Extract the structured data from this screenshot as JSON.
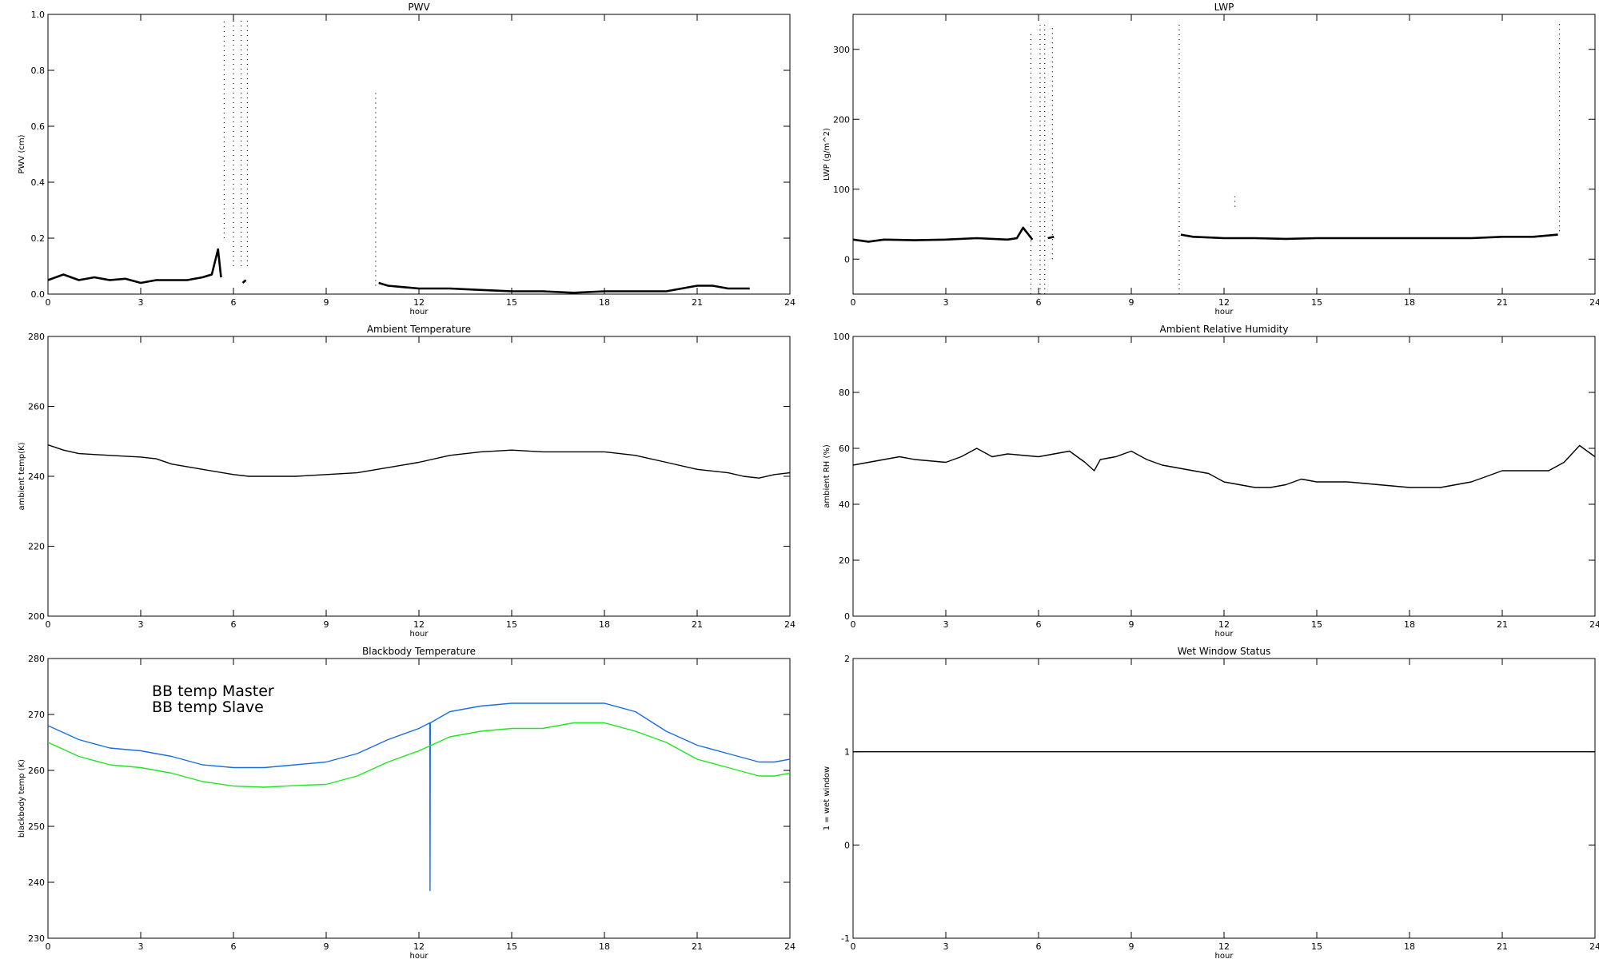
{
  "chart_data": [
    {
      "type": "scatter",
      "title": "PWV",
      "xlabel": "hour",
      "ylabel": "PWV (cm)",
      "xlim": [
        0,
        24
      ],
      "ylim": [
        0,
        1
      ],
      "xticks": [
        0,
        3,
        6,
        9,
        12,
        15,
        18,
        21,
        24
      ],
      "xtick_labels": [
        "0",
        "3",
        "6",
        "9",
        "12",
        "15",
        "18",
        "21",
        "24"
      ],
      "yticks": [
        0,
        0.2,
        0.4,
        0.6,
        0.8,
        1.0
      ],
      "ytick_labels": [
        "0.0",
        "0.2",
        "0.4",
        "0.6",
        "0.8",
        "1.0"
      ],
      "grid": false,
      "color": "#000000",
      "series": [
        {
          "x": [
            0,
            0.5,
            1,
            1.5,
            2,
            2.5,
            3,
            3.5,
            4,
            4.5,
            5,
            5.3,
            5.5,
            5.6
          ],
          "y": [
            0.05,
            0.07,
            0.05,
            0.06,
            0.05,
            0.055,
            0.04,
            0.05,
            0.05,
            0.05,
            0.06,
            0.07,
            0.16,
            0.06
          ]
        },
        {
          "x": [
            6.3,
            6.4
          ],
          "y": [
            0.04,
            0.05
          ]
        },
        {
          "x": [
            10.7,
            11,
            11.5,
            12,
            12.5,
            13,
            14,
            15,
            16,
            17,
            18,
            19,
            20,
            20.5,
            21,
            21.5,
            22,
            22.7
          ],
          "y": [
            0.04,
            0.03,
            0.025,
            0.02,
            0.02,
            0.02,
            0.015,
            0.01,
            0.01,
            0.005,
            0.01,
            0.01,
            0.01,
            0.02,
            0.03,
            0.03,
            0.02,
            0.02
          ]
        }
      ],
      "spikes": [
        {
          "x": 5.7,
          "y": [
            0.2,
            0.98
          ]
        },
        {
          "x": 6.0,
          "y": [
            0.1,
            0.98
          ]
        },
        {
          "x": 6.25,
          "y": [
            0.1,
            0.98
          ]
        },
        {
          "x": 6.45,
          "y": [
            0.1,
            0.98
          ]
        },
        {
          "x": 10.6,
          "y": [
            0.03,
            0.73
          ]
        }
      ]
    },
    {
      "type": "scatter",
      "title": "LWP",
      "xlabel": "hour",
      "ylabel": "LWP (g/m^2)",
      "xlim": [
        0,
        24
      ],
      "ylim": [
        -50,
        350
      ],
      "xticks": [
        0,
        3,
        6,
        9,
        12,
        15,
        18,
        21,
        24
      ],
      "xtick_labels": [
        "0",
        "3",
        "6",
        "9",
        "12",
        "15",
        "18",
        "21",
        "24"
      ],
      "yticks": [
        0,
        100,
        200,
        300
      ],
      "ytick_labels": [
        "0",
        "100",
        "200",
        "300"
      ],
      "grid": false,
      "color": "#000000",
      "series": [
        {
          "x": [
            0,
            0.5,
            1,
            2,
            3,
            4,
            5,
            5.3,
            5.5,
            5.8
          ],
          "y": [
            28,
            25,
            28,
            27,
            28,
            30,
            28,
            30,
            45,
            28
          ]
        },
        {
          "x": [
            6.3,
            6.5
          ],
          "y": [
            30,
            32
          ]
        },
        {
          "x": [
            10.6,
            11,
            12,
            13,
            14,
            15,
            16,
            17,
            18,
            19,
            20,
            21,
            22,
            22.8
          ],
          "y": [
            35,
            32,
            30,
            30,
            29,
            30,
            30,
            30,
            30,
            30,
            30,
            32,
            32,
            35
          ]
        }
      ],
      "spikes": [
        {
          "x": 5.75,
          "y": [
            -50,
            325
          ]
        },
        {
          "x": 6.05,
          "y": [
            -50,
            335
          ]
        },
        {
          "x": 6.2,
          "y": [
            -50,
            335
          ]
        },
        {
          "x": 6.45,
          "y": [
            0,
            335
          ]
        },
        {
          "x": 10.55,
          "y": [
            -50,
            340
          ]
        },
        {
          "x": 12.35,
          "y": [
            75,
            95
          ]
        },
        {
          "x": 22.85,
          "y": [
            40,
            340
          ]
        }
      ]
    },
    {
      "type": "line",
      "title": "Ambient Temperature",
      "xlabel": "hour",
      "ylabel": "ambient temp(K)",
      "xlim": [
        0,
        24
      ],
      "ylim": [
        200,
        280
      ],
      "xticks": [
        0,
        3,
        6,
        9,
        12,
        15,
        18,
        21,
        24
      ],
      "xtick_labels": [
        "0",
        "3",
        "6",
        "9",
        "12",
        "15",
        "18",
        "21",
        "24"
      ],
      "yticks": [
        200,
        220,
        240,
        260,
        280
      ],
      "ytick_labels": [
        "200",
        "220",
        "240",
        "260",
        "280"
      ],
      "grid": false,
      "color": "#000000",
      "series": [
        {
          "x": [
            0,
            0.5,
            1,
            2,
            3,
            3.5,
            4,
            5,
            6,
            6.5,
            7,
            8,
            9,
            10,
            11,
            12,
            13,
            14,
            15,
            16,
            17,
            18,
            19,
            20,
            21,
            22,
            22.5,
            23,
            23.5,
            24
          ],
          "y": [
            249,
            247.5,
            246.5,
            246,
            245.5,
            245,
            243.5,
            242,
            240.5,
            240,
            240,
            240,
            240.5,
            241,
            242.5,
            244,
            246,
            247,
            247.5,
            247,
            247,
            247,
            246,
            244,
            242,
            241,
            240,
            239.5,
            240.5,
            241
          ]
        }
      ]
    },
    {
      "type": "line",
      "title": "Ambient Relative Humidity",
      "xlabel": "hour",
      "ylabel": "ambient RH (%)",
      "xlim": [
        0,
        24
      ],
      "ylim": [
        0,
        100
      ],
      "xticks": [
        0,
        3,
        6,
        9,
        12,
        15,
        18,
        21,
        24
      ],
      "xtick_labels": [
        "0",
        "3",
        "6",
        "9",
        "12",
        "15",
        "18",
        "21",
        "24"
      ],
      "yticks": [
        0,
        20,
        40,
        60,
        80,
        100
      ],
      "ytick_labels": [
        "0",
        "20",
        "40",
        "60",
        "80",
        "100"
      ],
      "grid": false,
      "color": "#000000",
      "series": [
        {
          "x": [
            0,
            0.5,
            1,
            1.5,
            2,
            3,
            3.5,
            4,
            4.5,
            5,
            6,
            7,
            7.5,
            7.8,
            8,
            8.5,
            9,
            9.5,
            10,
            10.5,
            11,
            11.5,
            12,
            12.5,
            13,
            13.5,
            14,
            14.5,
            15,
            16,
            17,
            18,
            19,
            20,
            20.5,
            21,
            22,
            22.5,
            23,
            23.5,
            24
          ],
          "y": [
            54,
            55,
            56,
            57,
            56,
            55,
            57,
            60,
            57,
            58,
            57,
            59,
            55,
            52,
            56,
            57,
            59,
            56,
            54,
            53,
            52,
            51,
            48,
            47,
            46,
            46,
            47,
            49,
            48,
            48,
            47,
            46,
            46,
            48,
            50,
            52,
            52,
            52,
            55,
            61,
            57
          ]
        }
      ]
    },
    {
      "type": "line",
      "title": "Blackbody Temperature",
      "xlabel": "hour",
      "ylabel": "blackbody temp (K)",
      "xlim": [
        0,
        24
      ],
      "ylim": [
        230,
        280
      ],
      "xticks": [
        0,
        3,
        6,
        9,
        12,
        15,
        18,
        21,
        24
      ],
      "xtick_labels": [
        "0",
        "3",
        "6",
        "9",
        "12",
        "15",
        "18",
        "21",
        "24"
      ],
      "yticks": [
        230,
        240,
        250,
        260,
        270,
        280
      ],
      "ytick_labels": [
        "230",
        "240",
        "250",
        "260",
        "270",
        "280"
      ],
      "grid": false,
      "legend_position": "top-left",
      "series": [
        {
          "name": "BB temp Master",
          "color": "#1a6ee6",
          "x": [
            0,
            1,
            2,
            3,
            4,
            5,
            6,
            7,
            8,
            9,
            10,
            11,
            12,
            12.35,
            12.36,
            12.37,
            13,
            14,
            15,
            15.5,
            16,
            17,
            18,
            19,
            20,
            21,
            22,
            23,
            23.5,
            24
          ],
          "y": [
            268,
            265.5,
            264,
            263.5,
            262.5,
            261,
            260.5,
            260.5,
            261,
            261.5,
            263,
            265.5,
            267.5,
            268.5,
            238.5,
            268.5,
            270.5,
            271.5,
            272,
            272,
            272,
            272,
            272,
            270.5,
            267,
            264.5,
            263,
            261.5,
            261.5,
            262
          ]
        },
        {
          "name": "BB temp Slave",
          "color": "#22e622",
          "x": [
            0,
            1,
            2,
            3,
            4,
            5,
            6,
            7,
            8,
            9,
            10,
            11,
            12,
            13,
            14,
            15,
            16,
            17,
            18,
            19,
            20,
            21,
            22,
            23,
            23.5,
            24
          ],
          "y": [
            265,
            262.5,
            261,
            260.5,
            259.5,
            258,
            257.2,
            257,
            257.3,
            257.5,
            259,
            261.5,
            263.5,
            266,
            267,
            267.5,
            267.5,
            268.5,
            268.5,
            267,
            265,
            262,
            260.5,
            259,
            259,
            259.5
          ]
        }
      ]
    },
    {
      "type": "line",
      "title": "Wet Window Status",
      "xlabel": "hour",
      "ylabel": "1 = wet window",
      "xlim": [
        0,
        24
      ],
      "ylim": [
        -1,
        2
      ],
      "xticks": [
        0,
        3,
        6,
        9,
        12,
        15,
        18,
        21,
        24
      ],
      "xtick_labels": [
        "0",
        "3",
        "6",
        "9",
        "12",
        "15",
        "18",
        "21",
        "24"
      ],
      "yticks": [
        -1,
        0,
        1,
        2
      ],
      "ytick_labels": [
        "-1",
        "0",
        "1",
        "2"
      ],
      "grid": false,
      "color": "#000000",
      "series": [
        {
          "x": [
            0,
            24
          ],
          "y": [
            1,
            1
          ]
        }
      ]
    }
  ]
}
